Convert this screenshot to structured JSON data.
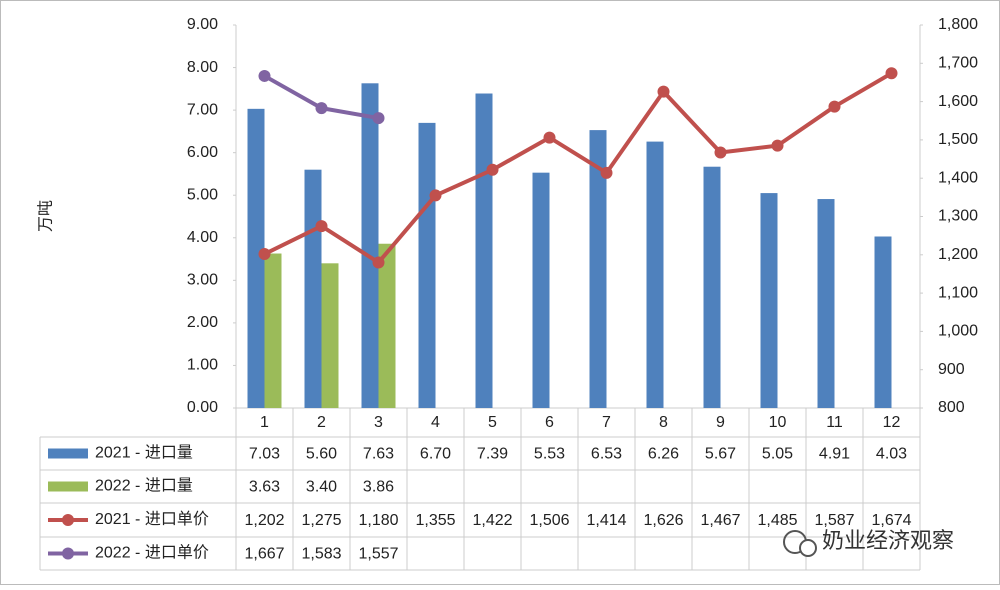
{
  "chart_data": {
    "type": "bar",
    "y_label": "万吨",
    "categories": [
      "1",
      "2",
      "3",
      "4",
      "5",
      "6",
      "7",
      "8",
      "9",
      "10",
      "11",
      "12"
    ],
    "ylim": [
      0,
      9
    ],
    "yticks": [
      {
        "value": 0,
        "label": "0.00"
      },
      {
        "value": 1,
        "label": "1.00"
      },
      {
        "value": 2,
        "label": "2.00"
      },
      {
        "value": 3,
        "label": "3.00"
      },
      {
        "value": 4,
        "label": "4.00"
      },
      {
        "value": 5,
        "label": "5.00"
      },
      {
        "value": 6,
        "label": "6.00"
      },
      {
        "value": 7,
        "label": "7.00"
      },
      {
        "value": 8,
        "label": "8.00"
      },
      {
        "value": 9,
        "label": "9.00"
      }
    ],
    "y2lim": [
      800,
      1800
    ],
    "y2ticks": [
      800,
      900,
      {
        "value": 1000,
        "label": "1,000"
      },
      {
        "value": 1100,
        "label": "1,100"
      },
      {
        "value": 1200,
        "label": "1,200"
      },
      {
        "value": 1300,
        "label": "1,300"
      },
      {
        "value": 1400,
        "label": "1,400"
      },
      {
        "value": 1500,
        "label": "1,500"
      },
      {
        "value": 1600,
        "label": "1,600"
      },
      {
        "value": 1700,
        "label": "1,700"
      },
      {
        "value": 1800,
        "label": "1,800"
      }
    ],
    "series": [
      {
        "name": "2021 - 进口量",
        "type": "bar",
        "color": "#4f81bd",
        "values": [
          7.03,
          5.6,
          7.63,
          6.7,
          7.39,
          5.53,
          6.53,
          6.26,
          5.67,
          5.05,
          4.91,
          4.03
        ],
        "value_labels": [
          "7.03",
          "5.60",
          "7.63",
          "6.70",
          "7.39",
          "5.53",
          "6.53",
          "6.26",
          "5.67",
          "5.05",
          "4.91",
          "4.03"
        ]
      },
      {
        "name": "2022 - 进口量",
        "type": "bar",
        "color": "#9bbb59",
        "values": [
          3.63,
          3.4,
          3.86,
          null,
          null,
          null,
          null,
          null,
          null,
          null,
          null,
          null
        ],
        "value_labels": [
          "3.63",
          "3.40",
          "3.86",
          null,
          null,
          null,
          null,
          null,
          null,
          null,
          null,
          null
        ]
      },
      {
        "name": "2021 - 进口单价",
        "type": "line",
        "axis": "y2",
        "color": "#c0504d",
        "values": [
          1202,
          1275,
          1180,
          1355,
          1422,
          1506,
          1414,
          1626,
          1467,
          1485,
          1587,
          1674
        ],
        "value_labels": [
          "1,202",
          "1,275",
          "1,180",
          "1,355",
          "1,422",
          "1,506",
          "1,414",
          "1,626",
          "1,467",
          "1,485",
          "1,587",
          "1,674"
        ]
      },
      {
        "name": "2022 - 进口单价",
        "type": "line",
        "axis": "y2",
        "color": "#8064a2",
        "values": [
          1667,
          1583,
          1557,
          null,
          null,
          null,
          null,
          null,
          null,
          null,
          null,
          null
        ],
        "value_labels": [
          "1,667",
          "1,583",
          "1,557",
          null,
          null,
          null,
          null,
          null,
          null,
          null,
          null,
          null
        ]
      }
    ],
    "watermark": "奶业经济观察"
  }
}
